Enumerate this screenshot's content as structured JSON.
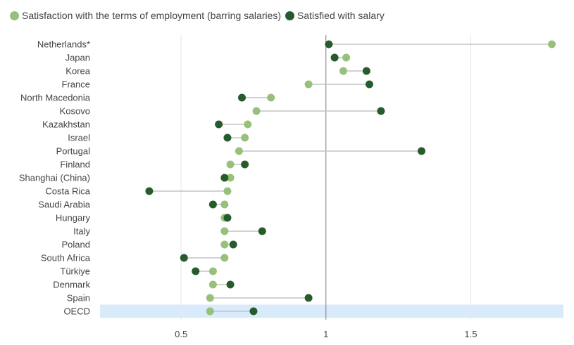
{
  "chart_data": {
    "type": "dumbbell",
    "title": "",
    "xlabel": "",
    "ylabel": "",
    "xlim": [
      0.22,
      1.82
    ],
    "x_ticks": [
      0.5,
      1,
      1.5
    ],
    "x_tick_labels": [
      "0.5",
      "1",
      "1.5"
    ],
    "reference_line": 1,
    "grid": true,
    "legend_position": "top-left",
    "highlight_category": "OECD",
    "colors": {
      "terms": "#97c17a",
      "salary": "#265c2c",
      "connector": "#c4c4c4",
      "highlight_band": "#d9ebfb",
      "grid": "#e6e6e6",
      "reference": "#777777"
    },
    "categories": [
      "Netherlands*",
      "Japan",
      "Korea",
      "France",
      "North Macedonia",
      "Kosovo",
      "Kazakhstan",
      "Israel",
      "Portugal",
      "Finland",
      "Shanghai (China)",
      "Costa Rica",
      "Saudi Arabia",
      "Hungary",
      "Italy",
      "Poland",
      "South Africa",
      "Türkiye",
      "Denmark",
      "Spain",
      "OECD"
    ],
    "series": [
      {
        "name": "Satisfaction with the terms  of employment (barring salaries)",
        "key": "terms",
        "values": [
          1.78,
          1.07,
          1.06,
          0.94,
          0.81,
          0.76,
          0.73,
          0.72,
          0.7,
          0.67,
          0.67,
          0.66,
          0.65,
          0.65,
          0.65,
          0.65,
          0.65,
          0.61,
          0.61,
          0.6,
          0.6
        ]
      },
      {
        "name": "Satisfied with salary",
        "key": "salary",
        "values": [
          1.01,
          1.03,
          1.14,
          1.15,
          0.71,
          1.19,
          0.63,
          0.66,
          1.33,
          0.72,
          0.65,
          0.39,
          0.61,
          0.66,
          0.78,
          0.68,
          0.51,
          0.55,
          0.67,
          0.94,
          0.75
        ]
      }
    ]
  }
}
